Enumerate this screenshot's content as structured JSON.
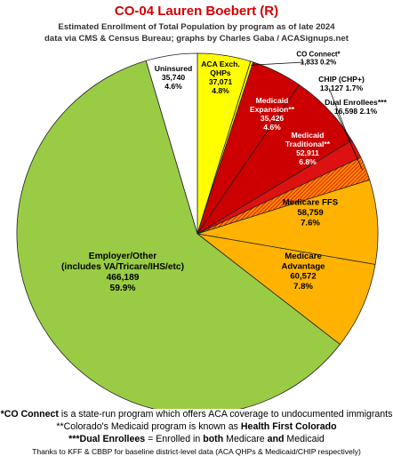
{
  "title": "CO-04 Lauren Boebert (R)",
  "subtitle_line1": "Estimated Enrollment of Total Population by program as of late 2024",
  "subtitle_line2": "data via CMS & Census Bureau; graphs by Charles Gaba / ACASignups.net",
  "chart_data": {
    "type": "pie",
    "title": "CO-04 Lauren Boebert (R)",
    "slices": [
      {
        "lines": [
          "ACA Exch.",
          "QHPs",
          "37,071",
          "4.8%"
        ],
        "value": 37071,
        "percent": 4.8,
        "color": "#ffff00",
        "text_color": "#000000"
      },
      {
        "lines": [
          "CO Connect*",
          "1,833 0.2%"
        ],
        "value": 1833,
        "percent": 0.2,
        "color": "#ffff00",
        "text_color": "#000000"
      },
      {
        "lines": [
          "Medicaid",
          "Expansion**",
          "35,426",
          "4.6%"
        ],
        "value": 35426,
        "percent": 4.6,
        "color": "#cc0000",
        "text_color": "#ffffff"
      },
      {
        "lines": [
          "Medicaid",
          "Traditional**",
          "52,911",
          "6.8%"
        ],
        "value": 52911,
        "percent": 6.8,
        "color": "#cc0000",
        "text_color": "#ffffff"
      },
      {
        "lines": [
          "CHIP (CHP+)",
          "13,127 1.7%"
        ],
        "value": 13127,
        "percent": 1.7,
        "color": "#dd1111",
        "text_color": "#000000"
      },
      {
        "lines": [
          "Dual Enrollees***",
          "16,598 2.1%"
        ],
        "value": 16598,
        "percent": 2.1,
        "color": "#ff8800",
        "text_color": "#000000"
      },
      {
        "lines": [
          "Medicare FFS",
          "58,759",
          "7.6%"
        ],
        "value": 58759,
        "percent": 7.6,
        "color": "#ffb300",
        "text_color": "#000000"
      },
      {
        "lines": [
          "Medicare",
          "Advantage",
          "60,572",
          "7.8%"
        ],
        "value": 60572,
        "percent": 7.8,
        "color": "#ffb300",
        "text_color": "#000000"
      },
      {
        "lines": [
          "Employer/Other",
          "(includes VA/Tricare/IHS/etc)",
          "466,189",
          "59.9%"
        ],
        "value": 466189,
        "percent": 59.9,
        "color": "#99cc44",
        "text_color": "#000000"
      },
      {
        "lines": [
          "Uninsured",
          "35,740",
          "4.6%"
        ],
        "value": 35740,
        "percent": 4.6,
        "color": "#ffffff",
        "text_color": "#000000"
      }
    ]
  },
  "footnotes": {
    "line1_bold": "*CO Connect",
    "line1_rest": " is a state-run program which offers ACA coverage to undocumented immigrants",
    "line2_a": "**Colorado's Medicaid program is known as ",
    "line2_bold": "Health First Colorado",
    "line3_bold1": "***Dual Enrollees",
    "line3_mid": " = Enrolled in ",
    "line3_bold2": "both",
    "line3_mid2": " Medicare ",
    "line3_bold3": "and",
    "line3_end": " Medicaid",
    "line4": "Thanks to KFF & CBBP for baseline district-level data (ACA QHPs & Medicaid/CHIP respectively)"
  }
}
